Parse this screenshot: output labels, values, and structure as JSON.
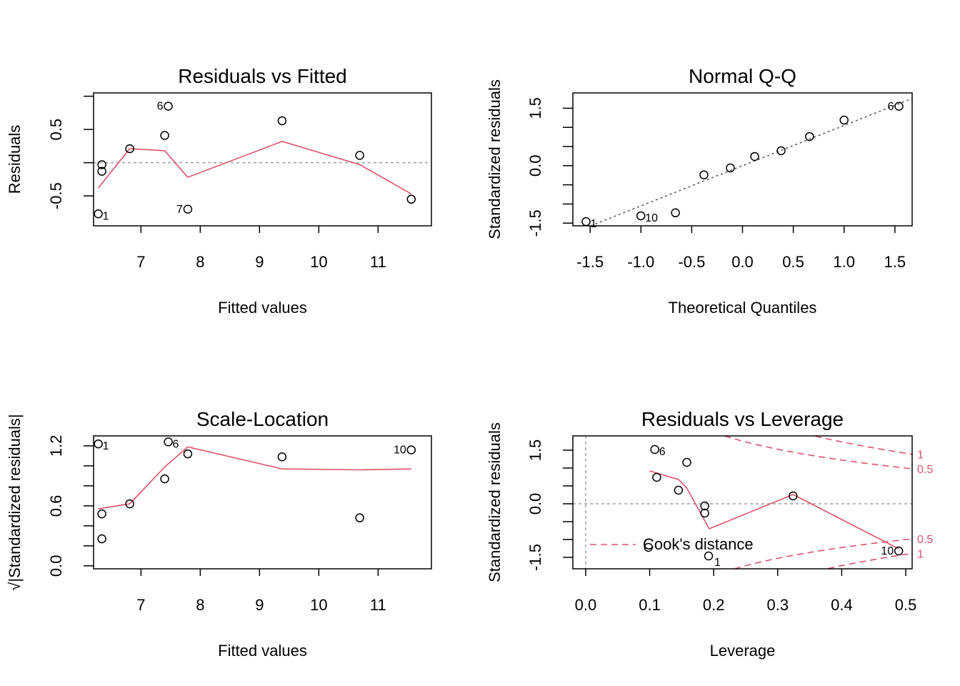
{
  "colors": {
    "smooth": "#DF536B",
    "ref": "#9E9E9E",
    "refdark": "#555555",
    "axis": "#000000"
  },
  "chart_data": [
    {
      "id": "resfit",
      "type": "scatter",
      "title": "Residuals vs Fitted",
      "xlabel": "Fitted values",
      "ylabel": "Residuals",
      "xlim": [
        6.2,
        11.9
      ],
      "ylim": [
        -0.95,
        1.05
      ],
      "xticks": [
        7,
        8,
        9,
        10,
        11
      ],
      "xtick_labels": [
        "7",
        "8",
        "9",
        "10",
        "11"
      ],
      "yticks": [
        -0.5,
        0.0,
        0.5,
        1.0
      ],
      "ytick_labels": [
        "-0.5",
        "",
        "0.5",
        ""
      ],
      "hline": 0,
      "points": [
        {
          "x": 6.28,
          "y": -0.77,
          "label": "1",
          "labelpos": "right"
        },
        {
          "x": 6.34,
          "y": -0.03,
          "label": ""
        },
        {
          "x": 6.34,
          "y": -0.13,
          "label": ""
        },
        {
          "x": 6.81,
          "y": 0.21,
          "label": ""
        },
        {
          "x": 7.4,
          "y": 0.41,
          "label": ""
        },
        {
          "x": 7.46,
          "y": 0.85,
          "label": "6",
          "labelpos": "left"
        },
        {
          "x": 7.79,
          "y": -0.7,
          "label": "7",
          "labelpos": "left"
        },
        {
          "x": 9.38,
          "y": 0.63,
          "label": ""
        },
        {
          "x": 10.69,
          "y": 0.11,
          "label": ""
        },
        {
          "x": 11.56,
          "y": -0.55,
          "label": ""
        }
      ],
      "smooth": [
        [
          6.28,
          -0.38
        ],
        [
          6.81,
          0.21
        ],
        [
          7.4,
          0.18
        ],
        [
          7.79,
          -0.22
        ],
        [
          9.38,
          0.32
        ],
        [
          10.69,
          -0.03
        ],
        [
          11.56,
          -0.47
        ]
      ]
    },
    {
      "id": "qq",
      "type": "scatter",
      "title": "Normal Q-Q",
      "xlabel": "Theoretical Quantiles",
      "ylabel": "Standardized residuals",
      "xlim": [
        -1.67,
        1.67
      ],
      "ylim": [
        -1.57,
        1.9
      ],
      "xticks": [
        -1.5,
        -1.0,
        -0.5,
        0.0,
        0.5,
        1.0,
        1.5
      ],
      "xtick_labels": [
        "-1.5",
        "-1.0",
        "-0.5",
        "0.0",
        "0.5",
        "1.0",
        "1.5"
      ],
      "yticks": [
        -1.5,
        -1.0,
        -0.5,
        0.0,
        0.5,
        1.0,
        1.5
      ],
      "ytick_labels": [
        "-1.5",
        "",
        "",
        "0.0",
        "",
        "",
        "1.5"
      ],
      "refline": {
        "slope": 1.05,
        "intercept": 0.0
      },
      "points": [
        {
          "x": -1.54,
          "y": -1.46,
          "label": "1",
          "labelpos": "right"
        },
        {
          "x": -1.0,
          "y": -1.31,
          "label": "10",
          "labelpos": "right"
        },
        {
          "x": -0.66,
          "y": -1.23,
          "label": ""
        },
        {
          "x": -0.38,
          "y": -0.24,
          "label": ""
        },
        {
          "x": -0.12,
          "y": -0.06,
          "label": ""
        },
        {
          "x": 0.12,
          "y": 0.24,
          "label": ""
        },
        {
          "x": 0.38,
          "y": 0.39,
          "label": ""
        },
        {
          "x": 0.66,
          "y": 0.76,
          "label": ""
        },
        {
          "x": 1.0,
          "y": 1.19,
          "label": ""
        },
        {
          "x": 1.54,
          "y": 1.55,
          "label": "6",
          "labelpos": "left"
        }
      ]
    },
    {
      "id": "scaleloc",
      "type": "scatter",
      "title": "Scale-Location",
      "xlabel": "Fitted values",
      "ylabel": "√|Standardized residuals|",
      "xlim": [
        6.2,
        11.9
      ],
      "ylim": [
        -0.03,
        1.3
      ],
      "xticks": [
        7,
        8,
        9,
        10,
        11
      ],
      "xtick_labels": [
        "7",
        "8",
        "9",
        "10",
        "11"
      ],
      "yticks": [
        0.0,
        0.2,
        0.4,
        0.6,
        0.8,
        1.0,
        1.2
      ],
      "ytick_labels": [
        "0.0",
        "",
        "",
        "0.6",
        "",
        "",
        "1.2"
      ],
      "points": [
        {
          "x": 6.28,
          "y": 1.22,
          "label": "1",
          "labelpos": "right"
        },
        {
          "x": 6.34,
          "y": 0.52,
          "label": ""
        },
        {
          "x": 6.34,
          "y": 0.27,
          "label": ""
        },
        {
          "x": 6.81,
          "y": 0.62,
          "label": ""
        },
        {
          "x": 7.4,
          "y": 0.87,
          "label": ""
        },
        {
          "x": 7.46,
          "y": 1.24,
          "label": "6",
          "labelpos": "right"
        },
        {
          "x": 7.79,
          "y": 1.12,
          "label": ""
        },
        {
          "x": 9.38,
          "y": 1.09,
          "label": ""
        },
        {
          "x": 10.69,
          "y": 0.48,
          "label": ""
        },
        {
          "x": 11.56,
          "y": 1.16,
          "label": "10",
          "labelpos": "left"
        }
      ],
      "smooth": [
        [
          6.28,
          0.57
        ],
        [
          6.81,
          0.62
        ],
        [
          7.4,
          0.99
        ],
        [
          7.79,
          1.19
        ],
        [
          9.38,
          0.97
        ],
        [
          10.69,
          0.96
        ],
        [
          11.56,
          0.97
        ]
      ]
    },
    {
      "id": "lev",
      "type": "scatter",
      "title": "Residuals vs Leverage",
      "xlabel": "Leverage",
      "ylabel": "Standardized residuals",
      "xlim": [
        -0.02,
        0.51
      ],
      "ylim": [
        -1.82,
        1.9
      ],
      "xticks": [
        0.0,
        0.1,
        0.2,
        0.3,
        0.4,
        0.5
      ],
      "xtick_labels": [
        "0.0",
        "0.1",
        "0.2",
        "0.3",
        "0.4",
        "0.5"
      ],
      "yticks": [
        -1.5,
        -1.0,
        -0.5,
        0.0,
        0.5,
        1.0,
        1.5
      ],
      "ytick_labels": [
        "-1.5",
        "",
        "",
        "0.0",
        "",
        "",
        "1.5"
      ],
      "hline": 0,
      "vline": 0,
      "points": [
        {
          "x": 0.108,
          "y": 1.52,
          "label": "6",
          "labelpos": "right"
        },
        {
          "x": 0.111,
          "y": 0.74,
          "label": ""
        },
        {
          "x": 0.145,
          "y": 0.38,
          "label": ""
        },
        {
          "x": 0.158,
          "y": 1.16,
          "label": ""
        },
        {
          "x": 0.186,
          "y": -0.06,
          "label": ""
        },
        {
          "x": 0.186,
          "y": -0.26,
          "label": ""
        },
        {
          "x": 0.192,
          "y": -1.46,
          "label": "1",
          "labelpos": "right"
        },
        {
          "x": 0.098,
          "y": -1.22,
          "label": ""
        },
        {
          "x": 0.324,
          "y": 0.22,
          "label": ""
        },
        {
          "x": 0.489,
          "y": -1.32,
          "label": "10",
          "labelpos": "left"
        }
      ],
      "smooth": [
        [
          0.1,
          0.92
        ],
        [
          0.145,
          0.68
        ],
        [
          0.158,
          0.44
        ],
        [
          0.193,
          -0.7
        ],
        [
          0.324,
          0.26
        ],
        [
          0.489,
          -1.26
        ]
      ],
      "cooks_levels": [
        0.5,
        1
      ],
      "cooks_p": 2,
      "cooks_labels": [
        "0.5",
        "1"
      ],
      "legend": {
        "label": "Cook's distance",
        "placement": "bottom-left"
      }
    }
  ]
}
